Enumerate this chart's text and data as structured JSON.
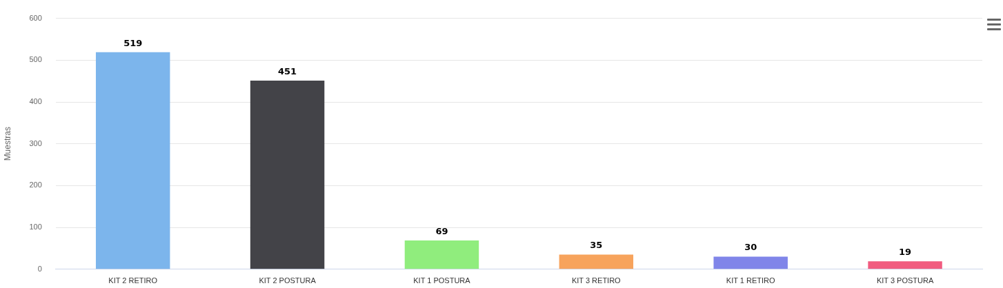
{
  "chart_data": {
    "type": "bar",
    "ylabel": "Muestras",
    "categories": [
      "KIT 2 RETIRO",
      "KIT 2 POSTURA",
      "KIT 1 POSTURA",
      "KIT 3 RETIRO",
      "KIT 1 RETIRO",
      "KIT 3 POSTURA"
    ],
    "values": [
      519,
      451,
      69,
      35,
      30,
      19
    ],
    "colors": [
      "#7cb5ec",
      "#434348",
      "#90ed7d",
      "#f7a35c",
      "#8085e9",
      "#f15c80"
    ],
    "ylim": [
      0,
      600
    ],
    "yticks": [
      0,
      100,
      200,
      300,
      400,
      500,
      600
    ],
    "grid": "y",
    "data_labels": true,
    "legend": false
  }
}
